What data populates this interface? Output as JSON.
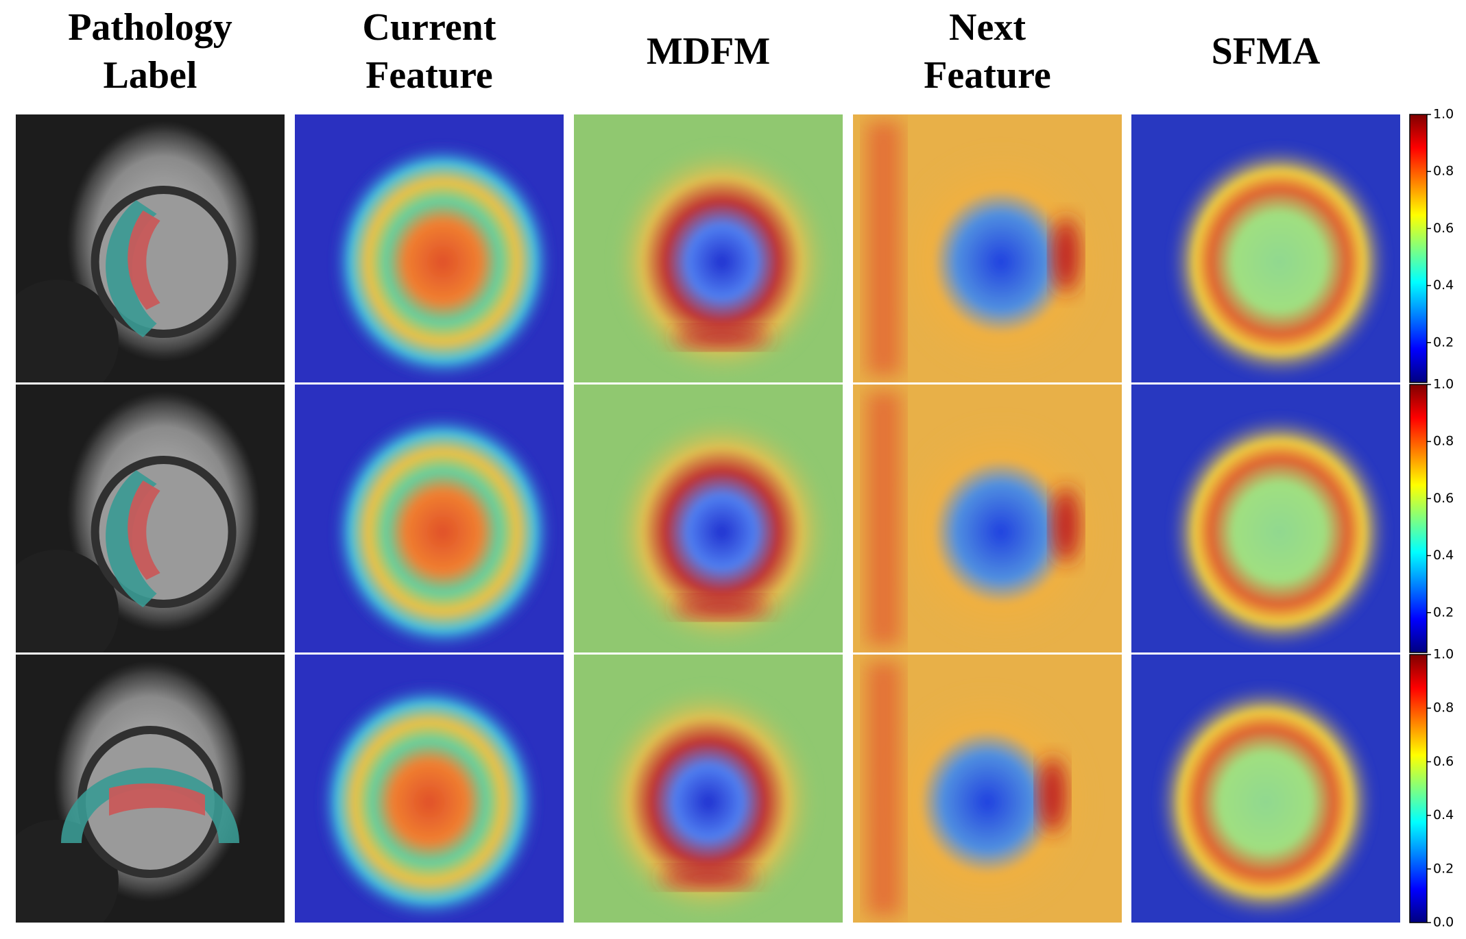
{
  "headers": [
    [
      "Pathology",
      "Label"
    ],
    [
      "Current",
      "Feature"
    ],
    [
      "MDFM"
    ],
    [
      "Next",
      "Feature"
    ],
    [
      "SFMA"
    ]
  ],
  "colorbars": [
    {
      "range": [
        0.06,
        1.0
      ],
      "ticks": [
        {
          "value": 1.0,
          "label": "1.0"
        },
        {
          "value": 0.8,
          "label": "0.8"
        },
        {
          "value": 0.6,
          "label": "0.6"
        },
        {
          "value": 0.4,
          "label": "0.4"
        },
        {
          "value": 0.2,
          "label": "0.2"
        }
      ]
    },
    {
      "range": [
        0.06,
        1.0
      ],
      "ticks": [
        {
          "value": 1.0,
          "label": "1.0"
        },
        {
          "value": 0.8,
          "label": "0.8"
        },
        {
          "value": 0.6,
          "label": "0.6"
        },
        {
          "value": 0.4,
          "label": "0.4"
        },
        {
          "value": 0.2,
          "label": "0.2"
        }
      ]
    },
    {
      "range": [
        0.0,
        1.0
      ],
      "ticks": [
        {
          "value": 1.0,
          "label": "1.0"
        },
        {
          "value": 0.8,
          "label": "0.8"
        },
        {
          "value": 0.6,
          "label": "0.6"
        },
        {
          "value": 0.4,
          "label": "0.4"
        },
        {
          "value": 0.2,
          "label": "0.2"
        },
        {
          "value": 0.0,
          "label": "0.0"
        }
      ]
    }
  ]
}
